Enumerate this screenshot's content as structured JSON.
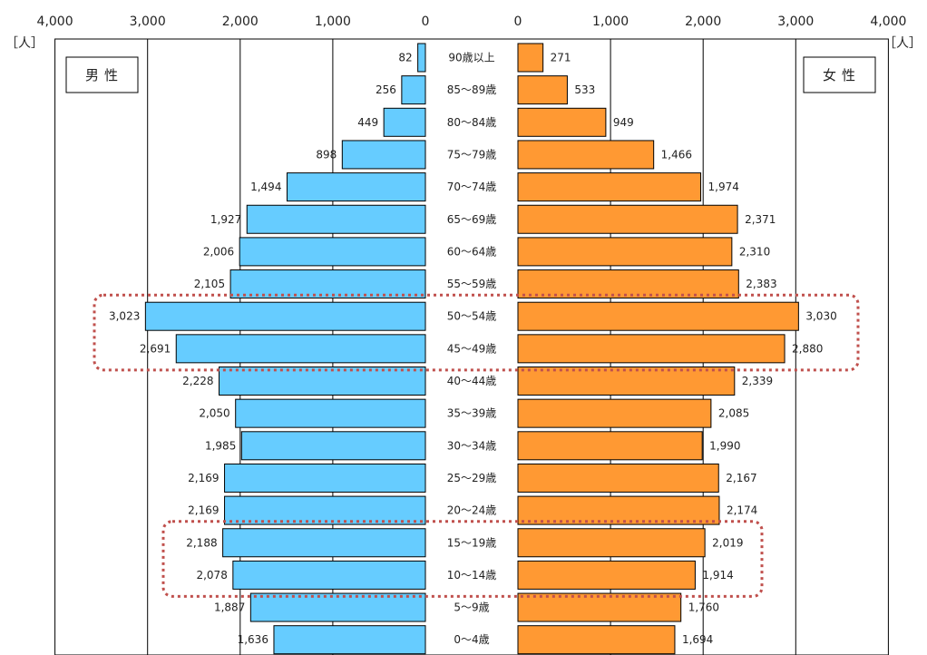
{
  "chart_data": {
    "type": "bar",
    "subtype": "population-pyramid",
    "title": "",
    "unit_label": "［人］",
    "x_ticks": [
      "4,000",
      "3,000",
      "2,000",
      "1,000",
      "0"
    ],
    "xlim": [
      0,
      4000
    ],
    "grid": true,
    "categories": [
      "90歳以上",
      "85～89歳",
      "80～84歳",
      "75～79歳",
      "70～74歳",
      "65～69歳",
      "60～64歳",
      "55～59歳",
      "50～54歳",
      "45～49歳",
      "40～44歳",
      "35～39歳",
      "30～34歳",
      "25～29歳",
      "20～24歳",
      "15～19歳",
      "10～14歳",
      "5～9歳",
      "0～4歳"
    ],
    "series": [
      {
        "name": "男性",
        "color": "#66ccff",
        "values": [
          82,
          256,
          449,
          898,
          1494,
          1927,
          2006,
          2105,
          3023,
          2691,
          2228,
          2050,
          1985,
          2169,
          2169,
          2188,
          2078,
          1887,
          1636
        ],
        "labels": [
          "82",
          "256",
          "449",
          "898",
          "1,494",
          "1,927",
          "2,006",
          "2,105",
          "3,023",
          "2,691",
          "2,228",
          "2,050",
          "1,985",
          "2,169",
          "2,169",
          "2,188",
          "2,078",
          "1,887",
          "1,636"
        ]
      },
      {
        "name": "女性",
        "color": "#ff9933",
        "values": [
          271,
          533,
          949,
          1466,
          1974,
          2371,
          2310,
          2383,
          3030,
          2880,
          2339,
          2085,
          1990,
          2167,
          2174,
          2019,
          1914,
          1760,
          1694
        ],
        "labels": [
          "271",
          "533",
          "949",
          "1,466",
          "1,974",
          "2,371",
          "2,310",
          "2,383",
          "3,030",
          "2,880",
          "2,339",
          "2,085",
          "1,990",
          "2,167",
          "2,174",
          "2,019",
          "1,914",
          "1,760",
          "1,694"
        ]
      }
    ],
    "highlights": [
      {
        "categories": [
          "50～54歳",
          "45～49歳"
        ],
        "style": "dotted",
        "color": "#c0504d"
      },
      {
        "categories": [
          "15～19歳",
          "10～14歳"
        ],
        "style": "dotted",
        "color": "#c0504d"
      }
    ]
  }
}
